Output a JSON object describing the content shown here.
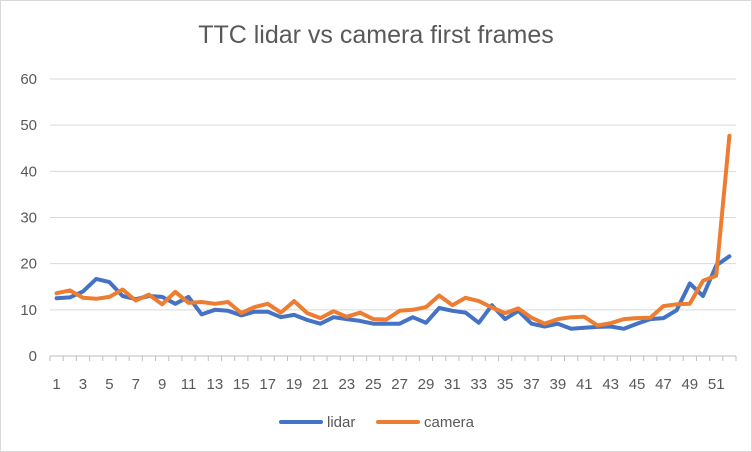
{
  "chart_data": {
    "type": "line",
    "title": "TTC lidar vs camera first frames",
    "xlabel": "",
    "ylabel": "",
    "ylim": [
      0,
      60
    ],
    "yticks": [
      0,
      10,
      20,
      30,
      40,
      50,
      60
    ],
    "x": [
      1,
      2,
      3,
      4,
      5,
      6,
      7,
      8,
      9,
      10,
      11,
      12,
      13,
      14,
      15,
      16,
      17,
      18,
      19,
      20,
      21,
      22,
      23,
      24,
      25,
      26,
      27,
      28,
      29,
      30,
      31,
      32,
      33,
      34,
      35,
      36,
      37,
      38,
      39,
      40,
      41,
      42,
      43,
      44,
      45,
      46,
      47,
      48,
      49,
      50,
      51,
      52
    ],
    "xtick_labels": [
      "1",
      "3",
      "5",
      "7",
      "9",
      "11",
      "13",
      "15",
      "17",
      "19",
      "21",
      "23",
      "25",
      "27",
      "29",
      "31",
      "33",
      "35",
      "37",
      "39",
      "41",
      "43",
      "45",
      "47",
      "49",
      "51"
    ],
    "grid": "horizontal",
    "legend_position": "bottom",
    "series": [
      {
        "name": "lidar",
        "color": "#4472c4",
        "values": [
          12.5,
          12.7,
          14,
          16.7,
          16,
          13,
          12.3,
          13,
          12.8,
          11.3,
          12.8,
          9,
          10,
          9.8,
          8.8,
          9.6,
          9.6,
          8.4,
          8.9,
          7.8,
          7,
          8.4,
          8,
          7.6,
          7,
          7,
          7,
          8.4,
          7.2,
          10.4,
          9.8,
          9.4,
          7.2,
          11,
          8,
          9.8,
          7,
          6.4,
          7,
          5.9,
          6.1,
          6.3,
          6.4,
          5.9,
          7,
          8,
          8.2,
          9.9,
          15.7,
          13,
          19.6,
          21.6
        ]
      },
      {
        "name": "camera",
        "color": "#ed7d31",
        "values": [
          13.6,
          14.2,
          12.6,
          12.4,
          12.8,
          14.4,
          12,
          13.3,
          11.2,
          13.9,
          11.5,
          11.7,
          11.3,
          11.7,
          9.3,
          10.6,
          11.3,
          9.4,
          11.9,
          9.3,
          8.2,
          9.7,
          8.5,
          9.4,
          8,
          7.9,
          9.8,
          10,
          10.6,
          13.1,
          11,
          12.6,
          11.9,
          10.5,
          9.3,
          10.3,
          8.3,
          7,
          8,
          8.4,
          8.5,
          6.6,
          7.1,
          8,
          8.2,
          8.3,
          10.8,
          11.2,
          11.3,
          16.3,
          17.4,
          47.7
        ]
      }
    ]
  }
}
